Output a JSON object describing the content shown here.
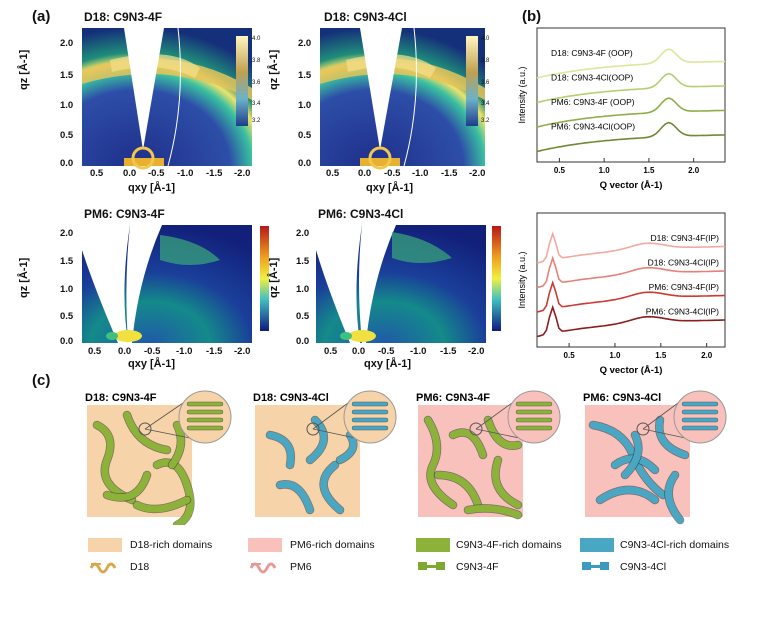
{
  "panels": {
    "a": "(a)",
    "b": "(b)",
    "c": "(c)"
  },
  "giwaxs": [
    {
      "title": "D18: C9N3-4F"
    },
    {
      "title": "D18: C9N3-4Cl"
    },
    {
      "title": "PM6: C9N3-4F"
    },
    {
      "title": "PM6: C9N3-4Cl"
    }
  ],
  "axes": {
    "qz": "qz [Å-1]",
    "qxy": "qxy [Å-1]"
  },
  "qz_ticks": [
    "2.0",
    "1.5",
    "1.0",
    "0.5",
    "0.0"
  ],
  "qxy_ticks": [
    "0.5",
    "0.0",
    "-0.5",
    "-1.0",
    "-1.5",
    "-2.0"
  ],
  "colorbar_ticks": [
    "4.0",
    "3.8",
    "3.6",
    "3.4",
    "3.2"
  ],
  "chart_data": [
    {
      "type": "line",
      "xlabel": "Q vector (Å-1)",
      "ylabel": "Intensity (a.u.)",
      "xlim": [
        0.25,
        2.35
      ],
      "x_ticks": [
        "0.5",
        "1.0",
        "1.5",
        "2.0"
      ],
      "series": [
        {
          "name": "D18: C9N3-4F (OOP)",
          "color": "#d9e89a"
        },
        {
          "name": "D18: C9N3-4Cl(OOP)",
          "color": "#b5cf6f"
        },
        {
          "name": "PM6: C9N3-4F (OOP)",
          "color": "#8fae4a"
        },
        {
          "name": "PM6: C9N3-4Cl(OOP)",
          "color": "#6f8a35"
        }
      ]
    },
    {
      "type": "line",
      "xlabel": "Q vector (Å-1)",
      "ylabel": "Intensity (a.u.)",
      "xlim": [
        0.15,
        2.2
      ],
      "x_ticks": [
        "0.5",
        "1.0",
        "1.5",
        "2.0"
      ],
      "series": [
        {
          "name": "D18: C9N3-4F(IP)",
          "color": "#f3a9a0"
        },
        {
          "name": "D18: C9N3-4Cl(IP)",
          "color": "#e6817a"
        },
        {
          "name": "PM6: C9N3-4F(IP)",
          "color": "#cc3a33"
        },
        {
          "name": "PM6: C9N3-4Cl(IP)",
          "color": "#8e1d1d"
        }
      ]
    }
  ],
  "schematics": [
    {
      "title": "D18: C9N3-4F",
      "bg": "#f6d3a8",
      "fiber": "#8cb23a"
    },
    {
      "title": "D18: C9N3-4Cl",
      "bg": "#f6d3a8",
      "fiber": "#4aa7c4"
    },
    {
      "title": "PM6: C9N3-4F",
      "bg": "#f8c1bb",
      "fiber": "#8cb23a"
    },
    {
      "title": "PM6: C9N3-4Cl",
      "bg": "#f8c1bb",
      "fiber": "#4aa7c4"
    }
  ],
  "key": {
    "d18_domains": "D18-rich domains",
    "pm6_domains": "PM6-rich domains",
    "c4f_domains": "C9N3-4F-rich domains",
    "c4cl_domains": "C9N3-4Cl-rich domains",
    "d18": "D18",
    "pm6": "PM6",
    "c4f": "C9N3-4F",
    "c4cl": "C9N3-4Cl",
    "colors": {
      "d18": "#f6d3a8",
      "pm6": "#f8c1bb",
      "c4f": "#8cb23a",
      "c4cl": "#4aa7c4"
    }
  }
}
